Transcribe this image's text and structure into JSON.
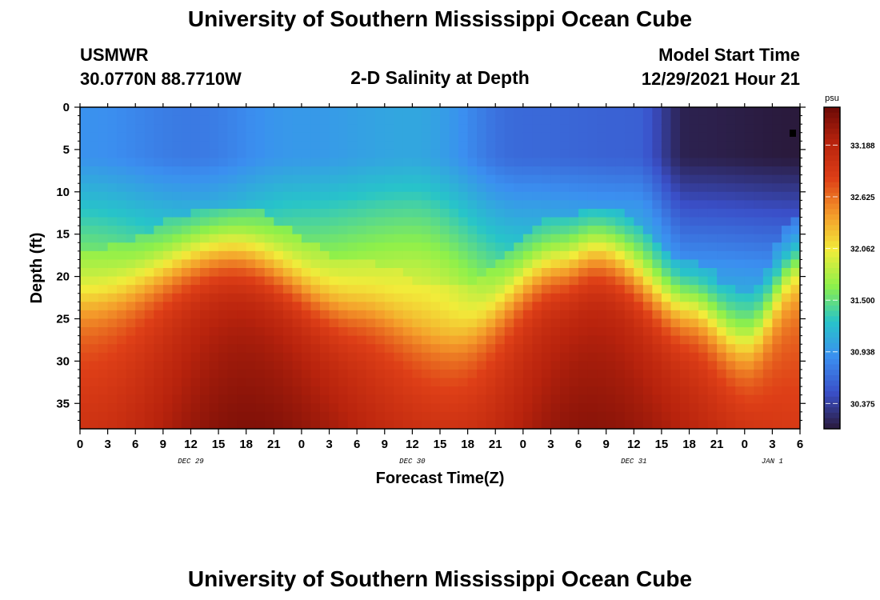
{
  "page": {
    "title": "University of Southern Mississippi Ocean Cube",
    "station": "USMWR",
    "coords": "30.0770N  88.7710W",
    "subtitle": "2-D Salinity at Depth",
    "model_start_label": "Model Start Time",
    "model_start_value": "12/29/2021 Hour 21",
    "footer_title": "University of Southern Mississippi Ocean Cube"
  },
  "chart_data": {
    "type": "heatmap",
    "title": "2-D Salinity at Depth",
    "xlabel": "Forecast Time(Z)",
    "ylabel": "Depth (ft)",
    "x_tick_labels": [
      "0",
      "3",
      "6",
      "9",
      "12",
      "15",
      "18",
      "21",
      "0",
      "3",
      "6",
      "9",
      "12",
      "15",
      "18",
      "21",
      "0",
      "3",
      "6",
      "9",
      "12",
      "15",
      "18",
      "21",
      "0",
      "3",
      "6"
    ],
    "x_range_hours": [
      0,
      78
    ],
    "day_labels": [
      {
        "label": "DEC 29",
        "hour": 12
      },
      {
        "label": "DEC 30",
        "hour": 36
      },
      {
        "label": "DEC 31",
        "hour": 60
      },
      {
        "label": "JAN 1",
        "hour": 75
      }
    ],
    "y_ticks": [
      0,
      5,
      10,
      15,
      20,
      25,
      30,
      35
    ],
    "y_range_ft": [
      0,
      38
    ],
    "y_reversed": true,
    "colorbar": {
      "unit": "psu",
      "ticks": [
        "33.188",
        "32.625",
        "32.062",
        "31.500",
        "30.938",
        "30.375"
      ],
      "range": [
        30.1,
        33.6
      ]
    },
    "surface_salinity_psu": [
      {
        "hour": 0,
        "value": 30.9
      },
      {
        "hour": 12,
        "value": 30.75
      },
      {
        "hour": 24,
        "value": 30.95
      },
      {
        "hour": 36,
        "value": 31.05
      },
      {
        "hour": 48,
        "value": 30.65
      },
      {
        "hour": 60,
        "value": 30.6
      },
      {
        "hour": 66,
        "value": 30.15
      },
      {
        "hour": 78,
        "value": 30.1
      }
    ],
    "halocline_depth_ft": [
      {
        "hour": 0,
        "value": 22
      },
      {
        "hour": 16,
        "value": 16.5
      },
      {
        "hour": 30,
        "value": 23
      },
      {
        "hour": 40,
        "value": 26.5
      },
      {
        "hour": 52,
        "value": 18
      },
      {
        "hour": 56,
        "value": 16.5
      },
      {
        "hour": 66,
        "value": 23
      },
      {
        "hour": 72,
        "value": 27
      },
      {
        "hour": 78,
        "value": 18
      }
    ],
    "bottom_salinity_psu": [
      {
        "hour": 0,
        "value": 33.0
      },
      {
        "hour": 18,
        "value": 33.5
      },
      {
        "hour": 40,
        "value": 33.0
      },
      {
        "hour": 55,
        "value": 33.45
      },
      {
        "hour": 78,
        "value": 32.9
      }
    ]
  },
  "colors": {
    "colormap": [
      "#2a1a3c",
      "#3a4fc8",
      "#3b8ff0",
      "#27c4c9",
      "#8ef04a",
      "#f2ec3a",
      "#f49a2a",
      "#de3f17",
      "#b8230d",
      "#6c0a06"
    ]
  }
}
